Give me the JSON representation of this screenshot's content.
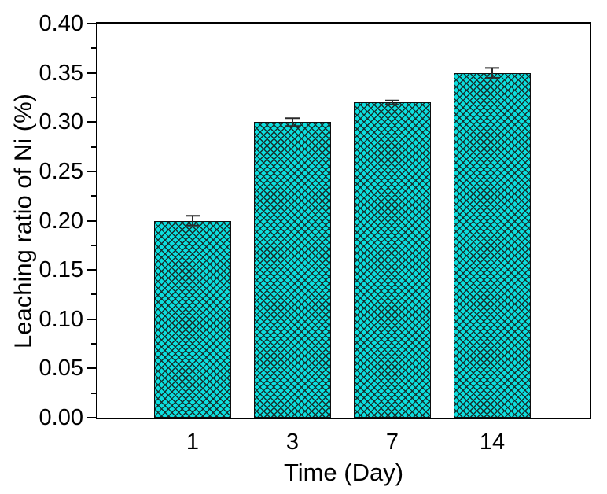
{
  "figure": {
    "background": "#ffffff"
  },
  "chart_data": {
    "type": "bar",
    "title": "",
    "xlabel": "Time (Day)",
    "ylabel": "Leaching ratio of Ni (%)",
    "categories": [
      "1",
      "3",
      "7",
      "14"
    ],
    "values": [
      0.2,
      0.3,
      0.32,
      0.35
    ],
    "errors": [
      0.005,
      0.004,
      0.002,
      0.005
    ],
    "ylim": [
      0.0,
      0.4
    ],
    "y_major_step": 0.05,
    "y_minor_step": 0.025,
    "y_tick_labels": [
      "0.00",
      "0.05",
      "0.10",
      "0.15",
      "0.20",
      "0.25",
      "0.30",
      "0.35",
      "0.40"
    ],
    "grid": false,
    "legend": null,
    "hatch": "diagonal-crosshatch",
    "colors": {
      "bar_fill": "#0cdede",
      "bar_hatch": "#15302e",
      "bar_edge": "#0e0e0e",
      "error_bar": "#2b2b2b",
      "axis": "#000000",
      "text": "#000000"
    }
  }
}
